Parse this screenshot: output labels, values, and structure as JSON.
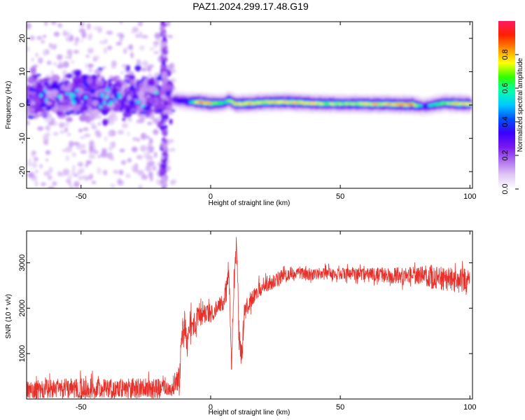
{
  "title": "PAZ1.2024.299.17.48.G19",
  "chart_data": [
    {
      "type": "heatmap",
      "xlabel": "Height of straight line (km)",
      "ylabel": "Frequency (Hz)",
      "xlim": [
        -71,
        101
      ],
      "ylim": [
        -25,
        25
      ],
      "xticks": [
        -50,
        0,
        50,
        100
      ],
      "yticks": [
        -20,
        -10,
        0,
        10,
        20
      ],
      "colorbar": {
        "label": "Normalized spectral amplitude",
        "range": [
          0,
          1
        ],
        "ticks": [
          0.0,
          0.2,
          0.4,
          0.6,
          0.8
        ],
        "colors": [
          "#ffffff",
          "#e0c8f5",
          "#b070f0",
          "#7a18ef",
          "#3a00ff",
          "#0050ff",
          "#00c8ff",
          "#00ffb0",
          "#30ff00",
          "#ffff00",
          "#ff9000",
          "#ff2000",
          "#ff1a60"
        ]
      },
      "ridge": {
        "x": [
          -14,
          -8,
          -4,
          0,
          5,
          7,
          10,
          15,
          20,
          30,
          40,
          50,
          60,
          70,
          78,
          82,
          85,
          90,
          95,
          100
        ],
        "freq": [
          1.5,
          1.0,
          0.8,
          0.5,
          0.6,
          1.4,
          0.3,
          0.5,
          0.8,
          0.9,
          0.5,
          0.4,
          0.3,
          0.2,
          0.1,
          -0.5,
          -0.1,
          0.6,
          0.4,
          0.3
        ],
        "amplitude": [
          0.45,
          0.55,
          0.9,
          0.85,
          0.6,
          0.7,
          0.8,
          0.85,
          0.8,
          0.85,
          0.8,
          0.75,
          0.8,
          0.85,
          0.9,
          0.5,
          0.6,
          0.7,
          0.85,
          0.8
        ]
      },
      "noise_region": {
        "x": [
          -71,
          -14
        ],
        "freq_spread": [
          -8,
          10
        ],
        "amplitude": [
          0.1,
          0.35
        ]
      }
    },
    {
      "type": "line",
      "xlabel": "Height of straight line (km)",
      "ylabel": "SNR (10 * v/v)",
      "xlim": [
        -71,
        101
      ],
      "ylim": [
        0,
        3700
      ],
      "xticks": [
        -50,
        0,
        50,
        100
      ],
      "yticks": [
        1000,
        2000,
        3000
      ],
      "color": "#e8302a",
      "x": [
        -71,
        -60,
        -50,
        -40,
        -30,
        -20,
        -15,
        -12,
        -11,
        -10,
        -9,
        -8,
        -7,
        -5,
        -2,
        0,
        3,
        5,
        6,
        7,
        8,
        9,
        10,
        11,
        12,
        13,
        15,
        20,
        25,
        30,
        40,
        50,
        60,
        70,
        80,
        85,
        90,
        95,
        100
      ],
      "y": [
        180,
        220,
        230,
        220,
        230,
        230,
        200,
        500,
        1500,
        1700,
        1100,
        1700,
        1600,
        1800,
        1850,
        1900,
        2050,
        2150,
        2400,
        2900,
        700,
        2400,
        3500,
        1300,
        900,
        1900,
        2150,
        2500,
        2600,
        2750,
        2750,
        2760,
        2760,
        2720,
        2720,
        2700,
        2650,
        2620,
        2600
      ],
      "noise_amplitude": [
        250,
        250,
        250,
        250,
        250,
        250,
        150,
        300,
        400,
        350,
        300,
        300,
        300,
        250,
        250,
        250,
        200,
        200,
        300,
        300,
        300,
        300,
        300,
        300,
        300,
        250,
        200,
        200,
        200,
        180,
        150,
        150,
        160,
        200,
        220,
        300,
        300,
        300,
        300
      ]
    }
  ]
}
